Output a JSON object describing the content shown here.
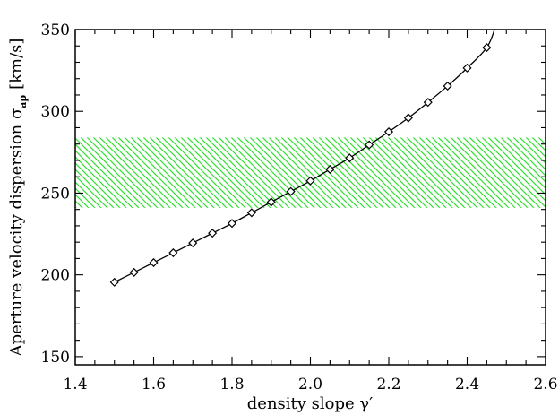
{
  "chart_data": {
    "type": "line",
    "xlabel": "density slope γ′",
    "ylabel_main": "Aperture velocity dispersion σ",
    "ylabel_sub": "ap",
    "ylabel_unit": "[km/s]",
    "xlim": [
      1.4,
      2.6
    ],
    "ylim": [
      145,
      350
    ],
    "x_ticks": [
      "1.4",
      "1.6",
      "1.8",
      "2.0",
      "2.2",
      "2.4",
      "2.6"
    ],
    "y_ticks": [
      "150",
      "200",
      "250",
      "300",
      "350"
    ],
    "grid": false,
    "band": {
      "y_low": 241,
      "y_high": 284,
      "color": "#33dd33",
      "pattern": "diagonal-hatch"
    },
    "series": [
      {
        "marker": "diamond",
        "color": "#000000",
        "x": [
          1.5,
          1.55,
          1.6,
          1.65,
          1.7,
          1.75,
          1.8,
          1.85,
          1.9,
          1.95,
          2.0,
          2.05,
          2.1,
          2.15,
          2.2,
          2.25,
          2.3,
          2.35,
          2.4,
          2.45
        ],
        "y": [
          195.5,
          201.5,
          207.5,
          213.5,
          219.5,
          225.5,
          231.5,
          238,
          244.5,
          251,
          257.5,
          264.5,
          271.5,
          279.5,
          287.5,
          296,
          305.5,
          315.5,
          326.5,
          339
        ],
        "curve_extension": {
          "x": [
            2.47
          ],
          "y": [
            350
          ]
        }
      }
    ]
  }
}
